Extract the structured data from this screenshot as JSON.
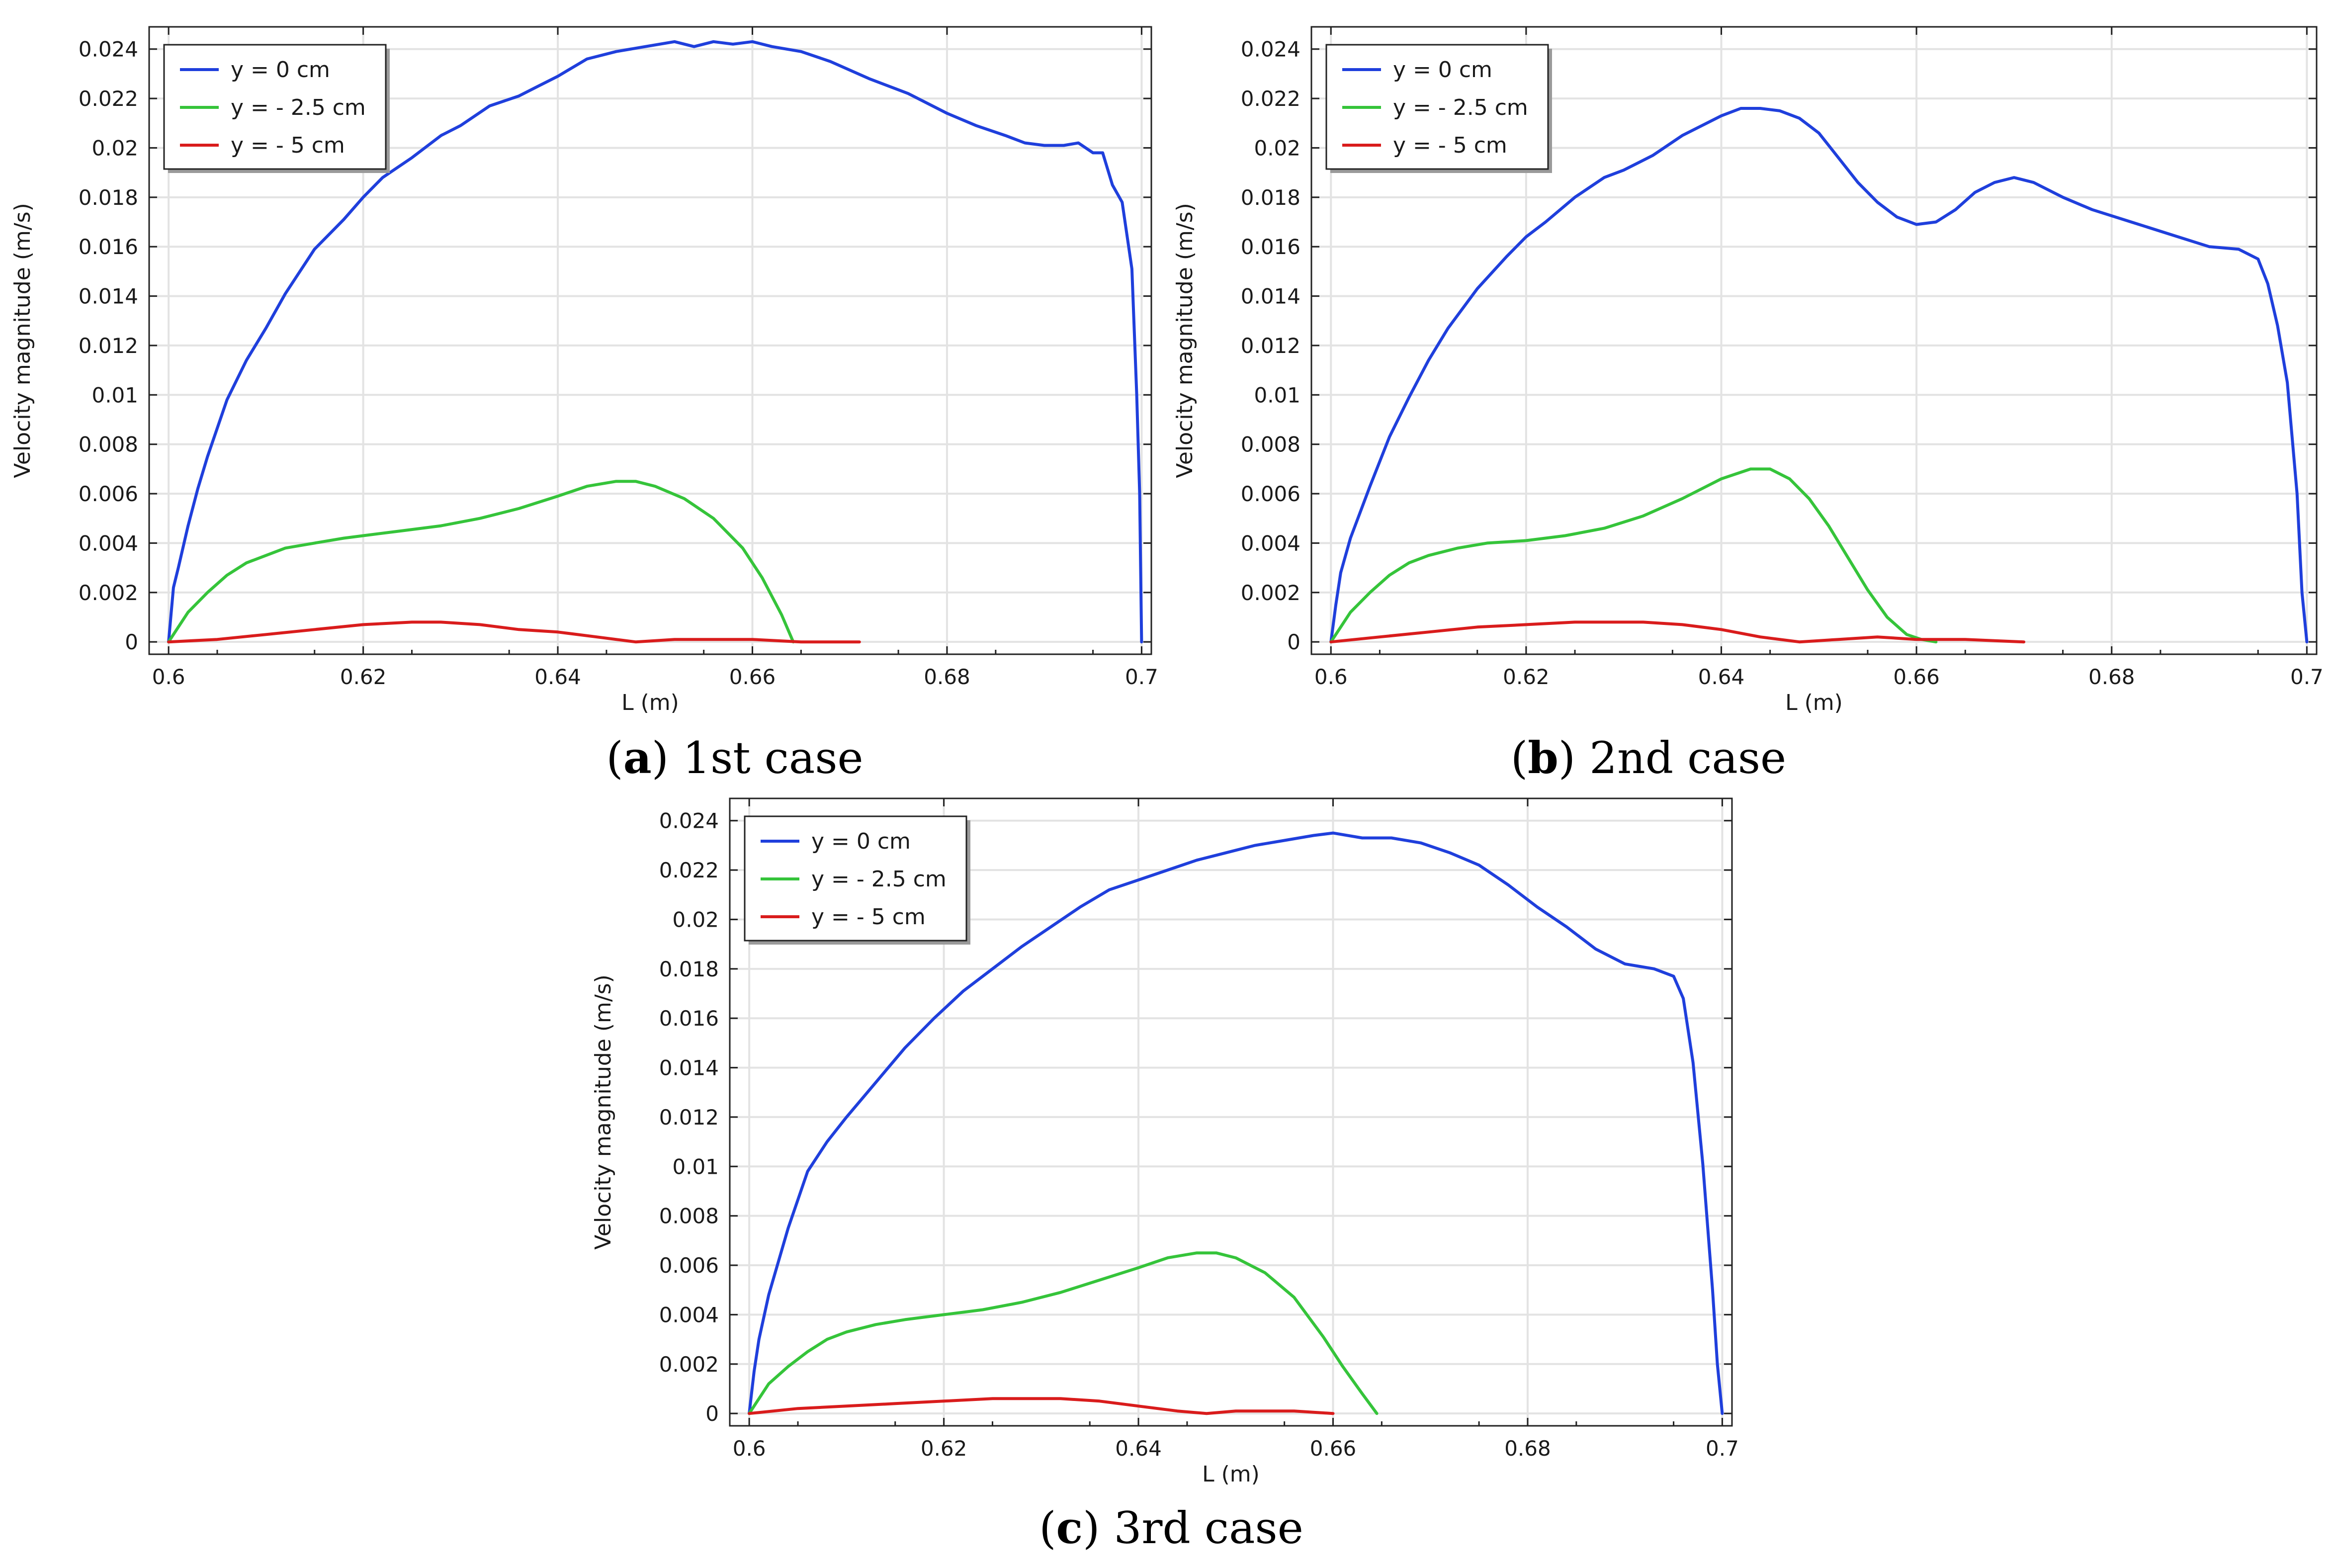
{
  "chart_data": [
    {
      "type": "line",
      "caption_letter": "a",
      "caption_text": "1st case",
      "xlabel": "L (m)",
      "ylabel": "Velocity magnitude (m/s)",
      "xlim": [
        0.598,
        0.701
      ],
      "ylim": [
        -0.0005,
        0.0249
      ],
      "xticks": [
        0.6,
        0.62,
        0.64,
        0.66,
        0.68,
        0.7
      ],
      "xtick_labels": [
        "0.6",
        "0.62",
        "0.64",
        "0.66",
        "0.68",
        "0.7"
      ],
      "yticks": [
        0,
        0.002,
        0.004,
        0.006,
        0.008,
        0.01,
        0.012,
        0.014,
        0.016,
        0.018,
        0.02,
        0.022,
        0.024
      ],
      "ytick_labels": [
        "0",
        "0.002",
        "0.004",
        "0.006",
        "0.008",
        "0.01",
        "0.012",
        "0.014",
        "0.016",
        "0.018",
        "0.02",
        "0.022",
        "0.024"
      ],
      "grid": true,
      "legend_position": "top-left",
      "series": [
        {
          "name": "y = 0 cm",
          "color": "#1f3fdc",
          "x": [
            0.6,
            0.6005,
            0.601,
            0.602,
            0.603,
            0.604,
            0.606,
            0.608,
            0.61,
            0.612,
            0.615,
            0.618,
            0.62,
            0.622,
            0.625,
            0.628,
            0.63,
            0.633,
            0.636,
            0.638,
            0.64,
            0.643,
            0.646,
            0.649,
            0.652,
            0.654,
            0.656,
            0.658,
            0.66,
            0.662,
            0.665,
            0.668,
            0.672,
            0.676,
            0.68,
            0.683,
            0.686,
            0.688,
            0.69,
            0.692,
            0.6935,
            0.695,
            0.696,
            0.697,
            0.698,
            0.699,
            0.6995,
            0.6998,
            0.7
          ],
          "y": [
            0.0,
            0.0022,
            0.003,
            0.0047,
            0.0062,
            0.0075,
            0.0098,
            0.0114,
            0.0127,
            0.0141,
            0.0159,
            0.0171,
            0.018,
            0.0188,
            0.0196,
            0.0205,
            0.0209,
            0.0217,
            0.0221,
            0.0225,
            0.0229,
            0.0236,
            0.0239,
            0.0241,
            0.0243,
            0.0241,
            0.0243,
            0.0242,
            0.0243,
            0.0241,
            0.0239,
            0.0235,
            0.0228,
            0.0222,
            0.0214,
            0.0209,
            0.0205,
            0.0202,
            0.0201,
            0.0201,
            0.0202,
            0.0198,
            0.0198,
            0.0185,
            0.0178,
            0.0151,
            0.01,
            0.006,
            0.0
          ]
        },
        {
          "name": "y = - 2.5 cm",
          "color": "#35c43a",
          "x": [
            0.6,
            0.602,
            0.604,
            0.606,
            0.608,
            0.61,
            0.612,
            0.615,
            0.618,
            0.62,
            0.624,
            0.628,
            0.632,
            0.636,
            0.64,
            0.643,
            0.646,
            0.648,
            0.65,
            0.653,
            0.656,
            0.659,
            0.661,
            0.663,
            0.6642
          ],
          "y": [
            0.0,
            0.0012,
            0.002,
            0.0027,
            0.0032,
            0.0035,
            0.0038,
            0.004,
            0.0042,
            0.0043,
            0.0045,
            0.0047,
            0.005,
            0.0054,
            0.0059,
            0.0063,
            0.0065,
            0.0065,
            0.0063,
            0.0058,
            0.005,
            0.0038,
            0.0026,
            0.0011,
            0.0
          ]
        },
        {
          "name": "y = - 5 cm",
          "color": "#d91c1c",
          "x": [
            0.6,
            0.605,
            0.61,
            0.615,
            0.62,
            0.625,
            0.628,
            0.632,
            0.636,
            0.64,
            0.644,
            0.648,
            0.652,
            0.656,
            0.66,
            0.665,
            0.671
          ],
          "y": [
            0.0,
            0.0001,
            0.0003,
            0.0005,
            0.0007,
            0.0008,
            0.0008,
            0.0007,
            0.0005,
            0.0004,
            0.0002,
            0.0,
            0.0001,
            0.0001,
            0.0001,
            0.0,
            0.0
          ]
        }
      ]
    },
    {
      "type": "line",
      "caption_letter": "b",
      "caption_text": "2nd case",
      "xlabel": "L (m)",
      "ylabel": "Velocity magnitude (m/s)",
      "xlim": [
        0.598,
        0.701
      ],
      "ylim": [
        -0.0005,
        0.0249
      ],
      "xticks": [
        0.6,
        0.62,
        0.64,
        0.66,
        0.68,
        0.7
      ],
      "xtick_labels": [
        "0.6",
        "0.62",
        "0.64",
        "0.66",
        "0.68",
        "0.7"
      ],
      "yticks": [
        0,
        0.002,
        0.004,
        0.006,
        0.008,
        0.01,
        0.012,
        0.014,
        0.016,
        0.018,
        0.02,
        0.022,
        0.024
      ],
      "ytick_labels": [
        "0",
        "0.002",
        "0.004",
        "0.006",
        "0.008",
        "0.01",
        "0.012",
        "0.014",
        "0.016",
        "0.018",
        "0.02",
        "0.022",
        "0.024"
      ],
      "grid": true,
      "legend_position": "top-left",
      "series": [
        {
          "name": "y = 0 cm",
          "color": "#1f3fdc",
          "x": [
            0.6,
            0.6005,
            0.601,
            0.602,
            0.604,
            0.606,
            0.608,
            0.61,
            0.612,
            0.615,
            0.618,
            0.62,
            0.622,
            0.625,
            0.628,
            0.63,
            0.633,
            0.636,
            0.64,
            0.642,
            0.644,
            0.646,
            0.648,
            0.65,
            0.652,
            0.654,
            0.656,
            0.658,
            0.66,
            0.662,
            0.664,
            0.666,
            0.668,
            0.67,
            0.672,
            0.675,
            0.678,
            0.682,
            0.686,
            0.69,
            0.693,
            0.695,
            0.696,
            0.697,
            0.698,
            0.699,
            0.6995,
            0.7
          ],
          "y": [
            0.0,
            0.0015,
            0.0028,
            0.0042,
            0.0063,
            0.0083,
            0.0099,
            0.0114,
            0.0127,
            0.0143,
            0.0156,
            0.0164,
            0.017,
            0.018,
            0.0188,
            0.0191,
            0.0197,
            0.0205,
            0.0213,
            0.0216,
            0.0216,
            0.0215,
            0.0212,
            0.0206,
            0.0196,
            0.0186,
            0.0178,
            0.0172,
            0.0169,
            0.017,
            0.0175,
            0.0182,
            0.0186,
            0.0188,
            0.0186,
            0.018,
            0.0175,
            0.017,
            0.0165,
            0.016,
            0.0159,
            0.0155,
            0.0145,
            0.0128,
            0.0105,
            0.006,
            0.002,
            0.0
          ]
        },
        {
          "name": "y = - 2.5 cm",
          "color": "#35c43a",
          "x": [
            0.6,
            0.602,
            0.604,
            0.606,
            0.608,
            0.61,
            0.613,
            0.616,
            0.62,
            0.624,
            0.628,
            0.632,
            0.636,
            0.64,
            0.643,
            0.645,
            0.647,
            0.649,
            0.651,
            0.653,
            0.655,
            0.657,
            0.659,
            0.6605,
            0.662
          ],
          "y": [
            0.0,
            0.0012,
            0.002,
            0.0027,
            0.0032,
            0.0035,
            0.0038,
            0.004,
            0.0041,
            0.0043,
            0.0046,
            0.0051,
            0.0058,
            0.0066,
            0.007,
            0.007,
            0.0066,
            0.0058,
            0.0047,
            0.0034,
            0.0021,
            0.001,
            0.0003,
            0.0001,
            0.0
          ]
        },
        {
          "name": "y = - 5 cm",
          "color": "#d91c1c",
          "x": [
            0.6,
            0.605,
            0.61,
            0.615,
            0.62,
            0.625,
            0.628,
            0.632,
            0.636,
            0.64,
            0.644,
            0.648,
            0.652,
            0.656,
            0.66,
            0.665,
            0.671
          ],
          "y": [
            0.0,
            0.0002,
            0.0004,
            0.0006,
            0.0007,
            0.0008,
            0.0008,
            0.0008,
            0.0007,
            0.0005,
            0.0002,
            0.0,
            0.0001,
            0.0002,
            0.0001,
            0.0001,
            0.0
          ]
        }
      ]
    },
    {
      "type": "line",
      "caption_letter": "c",
      "caption_text": "3rd case",
      "xlabel": "L (m)",
      "ylabel": "Velocity magnitude (m/s)",
      "xlim": [
        0.598,
        0.701
      ],
      "ylim": [
        -0.0005,
        0.0249
      ],
      "xticks": [
        0.6,
        0.62,
        0.64,
        0.66,
        0.68,
        0.7
      ],
      "xtick_labels": [
        "0.6",
        "0.62",
        "0.64",
        "0.66",
        "0.68",
        "0.7"
      ],
      "yticks": [
        0,
        0.002,
        0.004,
        0.006,
        0.008,
        0.01,
        0.012,
        0.014,
        0.016,
        0.018,
        0.02,
        0.022,
        0.024
      ],
      "ytick_labels": [
        "0",
        "0.002",
        "0.004",
        "0.006",
        "0.008",
        "0.01",
        "0.012",
        "0.014",
        "0.016",
        "0.018",
        "0.02",
        "0.022",
        "0.024"
      ],
      "grid": true,
      "legend_position": "top-left",
      "series": [
        {
          "name": "y = 0 cm",
          "color": "#1f3fdc",
          "x": [
            0.6,
            0.6005,
            0.601,
            0.602,
            0.604,
            0.606,
            0.608,
            0.61,
            0.613,
            0.616,
            0.619,
            0.622,
            0.625,
            0.628,
            0.631,
            0.634,
            0.637,
            0.64,
            0.643,
            0.646,
            0.649,
            0.652,
            0.655,
            0.658,
            0.66,
            0.663,
            0.666,
            0.669,
            0.672,
            0.675,
            0.678,
            0.681,
            0.684,
            0.687,
            0.69,
            0.693,
            0.695,
            0.696,
            0.697,
            0.698,
            0.699,
            0.6995,
            0.7
          ],
          "y": [
            0.0,
            0.0017,
            0.003,
            0.0048,
            0.0075,
            0.0098,
            0.011,
            0.012,
            0.0134,
            0.0148,
            0.016,
            0.0171,
            0.018,
            0.0189,
            0.0197,
            0.0205,
            0.0212,
            0.0216,
            0.022,
            0.0224,
            0.0227,
            0.023,
            0.0232,
            0.0234,
            0.0235,
            0.0233,
            0.0233,
            0.0231,
            0.0227,
            0.0222,
            0.0214,
            0.0205,
            0.0197,
            0.0188,
            0.0182,
            0.018,
            0.0177,
            0.0168,
            0.0142,
            0.0101,
            0.005,
            0.002,
            0.0
          ]
        },
        {
          "name": "y = - 2.5 cm",
          "color": "#35c43a",
          "x": [
            0.6,
            0.602,
            0.604,
            0.606,
            0.608,
            0.61,
            0.613,
            0.616,
            0.62,
            0.624,
            0.628,
            0.632,
            0.636,
            0.64,
            0.643,
            0.646,
            0.648,
            0.65,
            0.653,
            0.656,
            0.659,
            0.661,
            0.663,
            0.6645
          ],
          "y": [
            0.0,
            0.0012,
            0.0019,
            0.0025,
            0.003,
            0.0033,
            0.0036,
            0.0038,
            0.004,
            0.0042,
            0.0045,
            0.0049,
            0.0054,
            0.0059,
            0.0063,
            0.0065,
            0.0065,
            0.0063,
            0.0057,
            0.0047,
            0.0031,
            0.0019,
            0.0008,
            0.0
          ]
        },
        {
          "name": "y = - 5 cm",
          "color": "#d91c1c",
          "x": [
            0.6,
            0.605,
            0.61,
            0.615,
            0.62,
            0.625,
            0.628,
            0.632,
            0.636,
            0.64,
            0.644,
            0.647,
            0.65,
            0.653,
            0.656,
            0.66
          ],
          "y": [
            0.0,
            0.0002,
            0.0003,
            0.0004,
            0.0005,
            0.0006,
            0.0006,
            0.0006,
            0.0005,
            0.0003,
            0.0001,
            0.0,
            0.0001,
            0.0001,
            0.0001,
            0.0
          ]
        }
      ]
    }
  ]
}
